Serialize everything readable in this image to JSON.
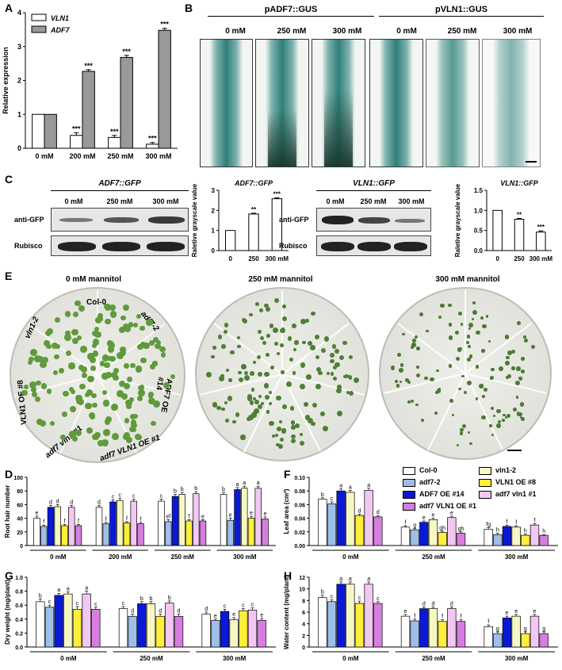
{
  "panel_letters": [
    "A",
    "B",
    "C",
    "E",
    "D",
    "F",
    "G",
    "H"
  ],
  "panel_b": {
    "groups": [
      "pADF7::GUS",
      "pVLN1::GUS"
    ],
    "conditions": [
      "0 mM",
      "250 mM",
      "300 mM"
    ]
  },
  "panel_c": {
    "blots": [
      {
        "title": "ADF7::GFP",
        "lanes": [
          "0 mM",
          "250 mM",
          "300 mM"
        ],
        "rows": [
          "anti-GFP",
          "Rubisco"
        ]
      },
      {
        "title": "VLN1::GFP",
        "lanes": [
          "0 mM",
          "250 mM",
          "300 mM"
        ],
        "rows": [
          "anti-GFP",
          "Rubisco"
        ]
      }
    ]
  },
  "panel_e": {
    "plates": [
      "0 mM mannitol",
      "250 mM mannitol",
      "300 mM mannitol"
    ],
    "sectors": [
      "Col-0",
      "adf7-2",
      "ADF7 OE #14",
      "adf7 VLN1 OE #1",
      "adf7 vln1 #1",
      "VLN1 OE #8",
      "vln1-2"
    ]
  },
  "legend_F": {
    "items": [
      {
        "name": "Col-0",
        "color": "#ffffff"
      },
      {
        "name": "vln1-2",
        "color": "#f7f7c4"
      },
      {
        "name": "adf7-2",
        "color": "#9ebfe8"
      },
      {
        "name": "VLN1 OE #8",
        "color": "#ffee3a"
      },
      {
        "name": "ADF7 OE #14",
        "color": "#0a19d6"
      },
      {
        "name": "adf7 vln1 #1",
        "color": "#f2c8f2"
      },
      {
        "name": "adf7 VLN1 OE #1",
        "color": "#d77de0"
      }
    ]
  },
  "chart_data": [
    {
      "panel": "A",
      "type": "bar",
      "ylabel": "Relative expression",
      "ylim": [
        0,
        4
      ],
      "categories": [
        "0 mM",
        "200 mM",
        "250 mM",
        "300 mM"
      ],
      "series": [
        {
          "name": "VLN1",
          "color": "#ffffff",
          "values": [
            1,
            0.38,
            0.32,
            0.12
          ],
          "errors": [
            0,
            0.08,
            0.06,
            0.05
          ],
          "sig": [
            "",
            "***",
            "***",
            "***"
          ]
        },
        {
          "name": "ADF7",
          "color": "#999999",
          "values": [
            1,
            2.27,
            2.68,
            3.48
          ],
          "errors": [
            0,
            0.05,
            0.06,
            0.06
          ],
          "sig": [
            "",
            "***",
            "***",
            "***"
          ]
        }
      ]
    },
    {
      "panel": "C1",
      "type": "bar",
      "title": "ADF7::GFP",
      "ylabel": "Raletive grayscale value",
      "ylim": [
        0,
        3
      ],
      "categories": [
        "0",
        "250",
        "300 mM"
      ],
      "values": [
        1,
        1.82,
        2.58
      ],
      "errors": [
        0,
        0.04,
        0.05
      ],
      "sig": [
        "",
        "**",
        "***"
      ]
    },
    {
      "panel": "C2",
      "type": "bar",
      "title": "VLN1::GFP",
      "ylabel": "Raletive grayscale value",
      "ylim": [
        0,
        1.5
      ],
      "categories": [
        "0",
        "250",
        "300 mM"
      ],
      "values": [
        1,
        0.78,
        0.46
      ],
      "errors": [
        0,
        0.02,
        0.03
      ],
      "sig": [
        "",
        "**",
        "***"
      ]
    },
    {
      "panel": "D",
      "type": "bar",
      "ylabel": "Root hair number",
      "ylim": [
        0,
        100
      ],
      "categories": [
        "0 mM",
        "200 mM",
        "250 mM",
        "300 mM"
      ],
      "order": [
        "Col-0",
        "adf7-2",
        "ADF7 OE #14",
        "vln1-2",
        "VLN1 OE #8",
        "adf7 vln1 #1",
        "adf7 VLN1 OE #1"
      ],
      "values": [
        [
          40,
          28,
          56,
          57,
          29,
          56,
          29
        ],
        [
          56,
          32,
          64,
          66,
          33,
          65,
          32
        ],
        [
          65,
          35,
          72,
          75,
          36,
          76,
          36
        ],
        [
          75,
          37,
          82,
          84,
          40,
          84,
          39
        ]
      ],
      "errors": [
        [
          3,
          2,
          3,
          3,
          2,
          3,
          2
        ],
        [
          3,
          2,
          3,
          3,
          2,
          3,
          2
        ],
        [
          3,
          3,
          3,
          3,
          2,
          3,
          2
        ],
        [
          3,
          3,
          3,
          3,
          3,
          3,
          3
        ]
      ],
      "letters": [
        [
          "e",
          "f",
          "d",
          "d",
          "f",
          "d",
          "f"
        ],
        [
          "d",
          "f",
          "c",
          "c",
          "f",
          "c",
          "f"
        ],
        [
          "c",
          "ef",
          "b",
          "b",
          "f",
          "b",
          "e"
        ],
        [
          "b",
          "e",
          "a",
          "a",
          "e",
          "a",
          "e"
        ]
      ]
    },
    {
      "panel": "F",
      "type": "bar",
      "ylabel": "Leaf area (cm²)",
      "ylim": [
        0,
        0.1
      ],
      "categories": [
        "0 mM",
        "250 mM",
        "300 mM"
      ],
      "order": [
        "Col-0",
        "adf7-2",
        "ADF7 OE #14",
        "vln1-2",
        "VLN1 OE #8",
        "adf7 vln1 #1",
        "adf7 VLN1 OE #1"
      ],
      "values": [
        [
          0.068,
          0.061,
          0.08,
          0.078,
          0.044,
          0.081,
          0.042
        ],
        [
          0.027,
          0.023,
          0.034,
          0.038,
          0.019,
          0.041,
          0.018
        ],
        [
          0.024,
          0.016,
          0.028,
          0.027,
          0.015,
          0.03,
          0.015
        ]
      ],
      "errors": [
        [
          0.002,
          0.003,
          0.003,
          0.003,
          0.002,
          0.003,
          0.002
        ],
        [
          0.002,
          0.002,
          0.002,
          0.002,
          0.002,
          0.002,
          0.002
        ],
        [
          0.002,
          0.002,
          0.002,
          0.002,
          0.002,
          0.002,
          0.001
        ]
      ],
      "letters": [
        [
          "b",
          "c",
          "a",
          "a",
          "d",
          "a",
          "d"
        ],
        [
          "f",
          "g",
          "e",
          "e",
          "gh",
          "e",
          "gh"
        ],
        [
          "fg",
          "h",
          "f",
          "f",
          "h",
          "f",
          "h"
        ]
      ]
    },
    {
      "panel": "G",
      "type": "bar",
      "ylabel": "Dry weight (mg/plant)",
      "ylim": [
        0,
        1
      ],
      "categories": [
        "0 mM",
        "250 mM",
        "300 mM"
      ],
      "order": [
        "Col-0",
        "adf7-2",
        "ADF7 OE #14",
        "vln1-2",
        "VLN1 OE #8",
        "adf7 vln1 #1",
        "adf7 VLN1 OE #1"
      ],
      "values": [
        [
          0.65,
          0.57,
          0.74,
          0.76,
          0.54,
          0.76,
          0.54
        ],
        [
          0.55,
          0.44,
          0.62,
          0.62,
          0.44,
          0.63,
          0.44
        ],
        [
          0.47,
          0.38,
          0.51,
          0.39,
          0.52,
          0.53,
          0.38
        ]
      ],
      "errors": [
        [
          0.04,
          0.03,
          0.03,
          0.03,
          0.04,
          0.04,
          0.03
        ],
        [
          0.03,
          0.03,
          0.03,
          0.03,
          0.03,
          0.03,
          0.03
        ],
        [
          0.03,
          0.02,
          0.03,
          0.03,
          0.03,
          0.03,
          0.03
        ]
      ],
      "letters": [
        [
          "b",
          "c",
          "a",
          "a",
          "c",
          "a",
          "c"
        ],
        [
          "c",
          "d",
          "b",
          "b",
          "d",
          "b",
          "d"
        ],
        [
          "d",
          "e",
          "c",
          "e",
          "c",
          "c",
          "e"
        ]
      ]
    },
    {
      "panel": "H",
      "type": "bar",
      "ylabel": "Water content (mg/plant)",
      "ylim": [
        0,
        12
      ],
      "categories": [
        "0 mM",
        "250 mM",
        "300 mM"
      ],
      "order": [
        "Col-0",
        "adf7-2",
        "ADF7 OE #14",
        "vln1-2",
        "VLN1 OE #8",
        "adf7 vln1 #1",
        "adf7 VLN1 OE #1"
      ],
      "values": [
        [
          8.5,
          7.8,
          10.8,
          10.8,
          7.5,
          10.8,
          7.5
        ],
        [
          5.3,
          4.5,
          6.6,
          6.6,
          4.4,
          6.6,
          4.4
        ],
        [
          3.5,
          2.3,
          5.0,
          5.3,
          2.3,
          5.3,
          2.3
        ]
      ],
      "errors": [
        [
          0.4,
          0.3,
          0.4,
          0.4,
          0.4,
          0.4,
          0.3
        ],
        [
          0.3,
          0.3,
          0.3,
          0.3,
          0.3,
          0.3,
          0.3
        ],
        [
          0.3,
          0.3,
          0.3,
          0.3,
          0.3,
          0.3,
          0.3
        ]
      ],
      "letters": [
        [
          "b",
          "c",
          "a",
          "a",
          "c",
          "a",
          "c"
        ],
        [
          "e",
          "f",
          "d",
          "d",
          "f",
          "d",
          "f"
        ],
        [
          "f",
          "g",
          "e",
          "e",
          "g",
          "e",
          "g"
        ]
      ]
    }
  ]
}
